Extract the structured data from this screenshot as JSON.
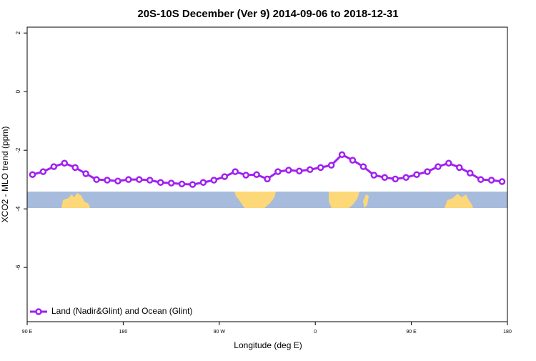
{
  "chart_data": {
    "type": "line",
    "title": "20S-10S December (Ver 9)   2014-09-06 to 2018-12-31",
    "x_label": "Longitude (deg E)",
    "y_label": "XCO2 - MLO trend (ppm)",
    "x": [
      95,
      105,
      115,
      125,
      135,
      145,
      155,
      165,
      175,
      185,
      195,
      205,
      215,
      225,
      235,
      245,
      255,
      265,
      275,
      285,
      295,
      305,
      315,
      325,
      335,
      345,
      355,
      365,
      375,
      385,
      395,
      405,
      415,
      425,
      435,
      445,
      455,
      465,
      475,
      485,
      495,
      505,
      515,
      525,
      535
    ],
    "series": [
      {
        "name": "Land (Nadir&Glint) and Ocean (Glint)",
        "color": "#a020f0",
        "values": [
          -2.83,
          -2.73,
          -2.56,
          -2.44,
          -2.59,
          -2.8,
          -3.0,
          -3.02,
          -3.05,
          -3.0,
          -3.0,
          -3.02,
          -3.1,
          -3.12,
          -3.15,
          -3.17,
          -3.1,
          -3.02,
          -2.9,
          -2.73,
          -2.85,
          -2.83,
          -2.98,
          -2.73,
          -2.68,
          -2.71,
          -2.66,
          -2.59,
          -2.51,
          -2.15,
          -2.34,
          -2.56,
          -2.85,
          -2.93,
          -2.98,
          -2.93,
          -2.83,
          -2.73,
          -2.56,
          -2.44,
          -2.59,
          -2.78,
          -3.0,
          -3.02,
          -3.07
        ]
      }
    ],
    "xlim": [
      90,
      540
    ],
    "xticks": [
      {
        "value": 90,
        "label": "90 E"
      },
      180,
      {
        "value": 270,
        "label": "90 W"
      },
      {
        "value": 360,
        "label": "0"
      },
      {
        "value": 450,
        "label": "90 E"
      },
      {
        "value": 540,
        "label": "180"
      }
    ],
    "ylim": [
      -7.85,
      2.2
    ],
    "yticks": [
      2,
      0,
      -2,
      -4,
      -6
    ],
    "legend": "bottom-left"
  }
}
